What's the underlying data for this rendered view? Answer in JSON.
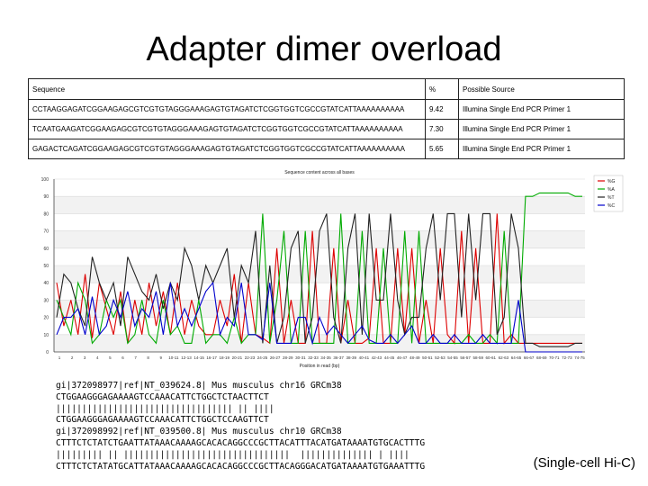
{
  "title": "Adapter dimer overload",
  "table": {
    "headers": [
      "Sequence",
      "%",
      "Possible Source"
    ],
    "rows": [
      {
        "sequence": "CCTAAGGAGATCGGAAGAGCGTCGTGTAGGGAAAGAGTGTAGATCTCGGTGGTCGCCGTATCATTAAAAAAAAAA",
        "percent": "9.42",
        "source": "Illumina Single End PCR Primer 1"
      },
      {
        "sequence": "TCAATGAAGATCGGAAGAGCGTCGTGTAGGGAAAGAGTGTAGATCTCGGTGGTCGCCGTATCATTAAAAAAAAAA",
        "percent": "7.30",
        "source": "Illumina Single End PCR Primer 1"
      },
      {
        "sequence": "GAGACTCAGATCGGAAGAGCGTCGTGTAGGGAAAGAGTGTAGATCTCGGTGGTCGCCGTATCATTAAAAAAAAAA",
        "percent": "5.65",
        "source": "Illumina Single End PCR Primer 1"
      }
    ]
  },
  "chart_data": {
    "type": "line",
    "title": "Sequence content across all bases",
    "xlabel": "Position in read (bp)",
    "ylabel": "",
    "ylim": [
      0,
      100
    ],
    "yticks": [
      "0",
      "10",
      "20",
      "30",
      "40",
      "50",
      "60",
      "70",
      "80",
      "90",
      "100"
    ],
    "categories": [
      "1",
      "2",
      "3",
      "4",
      "5",
      "6",
      "7",
      "8",
      "9",
      "10",
      "11",
      "12",
      "13",
      "14",
      "15",
      "16",
      "17",
      "18",
      "19",
      "20",
      "21",
      "22",
      "23",
      "24",
      "25",
      "26",
      "27",
      "28",
      "29",
      "30",
      "31",
      "32",
      "33",
      "34",
      "35",
      "36",
      "37",
      "38",
      "39",
      "40",
      "41",
      "42",
      "43",
      "44",
      "45",
      "46",
      "47",
      "48",
      "49",
      "50",
      "51",
      "52",
      "53",
      "54",
      "55",
      "56",
      "57",
      "58",
      "59",
      "60",
      "61",
      "62",
      "63",
      "64",
      "65",
      "66",
      "67",
      "68",
      "69",
      "70",
      "71",
      "72",
      "73",
      "74",
      "75"
    ],
    "xtick_labels": [
      "1",
      "2",
      "3",
      "4",
      "5",
      "6",
      "7",
      "8",
      "9",
      "10-11",
      "12-13",
      "14-15",
      "16-17",
      "18-19",
      "20-21",
      "22-23",
      "24-25",
      "26-27",
      "28-29",
      "30-31",
      "32-33",
      "34-35",
      "36-37",
      "38-39",
      "40-41",
      "42-43",
      "44-45",
      "46-47",
      "48-49",
      "50-51",
      "52-53",
      "54-55",
      "56-57",
      "58-59",
      "60-61",
      "62-63",
      "64-65",
      "66-67",
      "68-69",
      "70-71",
      "72-73",
      "74-75"
    ],
    "legend": {
      "placement": "right",
      "entries": [
        "%G",
        "%A",
        "%T",
        "%C"
      ]
    },
    "grid": true,
    "colors": {
      "G": "#dd0000",
      "A": "#00aa00",
      "T": "#222222",
      "C": "#0000cc"
    },
    "series": [
      {
        "name": "%G",
        "values": [
          40,
          15,
          30,
          10,
          45,
          8,
          40,
          25,
          10,
          35,
          5,
          30,
          10,
          40,
          15,
          35,
          10,
          40,
          10,
          30,
          15,
          10,
          10,
          30,
          15,
          45,
          5,
          40,
          10,
          8,
          5,
          60,
          5,
          30,
          5,
          5,
          70,
          5,
          5,
          60,
          5,
          30,
          5,
          5,
          8,
          60,
          5,
          5,
          60,
          10,
          60,
          5,
          30,
          5,
          60,
          10,
          5,
          70,
          5,
          60,
          5,
          5,
          80,
          5,
          10,
          5,
          5,
          5,
          5,
          5,
          5,
          5,
          5,
          5,
          5
        ]
      },
      {
        "name": "%A",
        "values": [
          30,
          20,
          10,
          40,
          30,
          5,
          10,
          30,
          20,
          30,
          5,
          10,
          30,
          10,
          5,
          30,
          10,
          15,
          5,
          5,
          30,
          5,
          10,
          10,
          5,
          20,
          5,
          10,
          10,
          80,
          5,
          30,
          70,
          5,
          5,
          70,
          5,
          5,
          5,
          5,
          80,
          5,
          5,
          70,
          5,
          5,
          60,
          5,
          5,
          70,
          5,
          70,
          5,
          5,
          5,
          5,
          5,
          5,
          10,
          5,
          5,
          10,
          5,
          70,
          5,
          5,
          90,
          90,
          92,
          92,
          92,
          92,
          92,
          90,
          90
        ]
      },
      {
        "name": "%T",
        "values": [
          20,
          45,
          40,
          25,
          15,
          55,
          40,
          30,
          40,
          15,
          55,
          45,
          35,
          30,
          45,
          25,
          40,
          30,
          60,
          50,
          30,
          50,
          40,
          50,
          60,
          20,
          50,
          40,
          70,
          5,
          50,
          5,
          20,
          60,
          70,
          5,
          20,
          70,
          80,
          20,
          5,
          60,
          80,
          10,
          80,
          30,
          30,
          80,
          30,
          10,
          20,
          20,
          60,
          80,
          30,
          80,
          80,
          20,
          80,
          30,
          80,
          80,
          10,
          20,
          80,
          60,
          5,
          5,
          3,
          3,
          3,
          3,
          3,
          5,
          5
        ]
      },
      {
        "name": "%C",
        "values": [
          10,
          20,
          20,
          25,
          10,
          32,
          10,
          15,
          30,
          20,
          35,
          15,
          25,
          20,
          35,
          10,
          40,
          15,
          25,
          15,
          25,
          35,
          40,
          10,
          20,
          15,
          40,
          10,
          10,
          7,
          40,
          5,
          5,
          5,
          20,
          20,
          5,
          20,
          10,
          15,
          10,
          5,
          10,
          15,
          7,
          5,
          5,
          10,
          5,
          10,
          15,
          5,
          5,
          10,
          5,
          5,
          10,
          5,
          5,
          5,
          10,
          5,
          5,
          5,
          5,
          30,
          0,
          0,
          0,
          0,
          0,
          0,
          0,
          0,
          0
        ]
      }
    ]
  },
  "alignment": {
    "lines": [
      "gi|372098977|ref|NT_039624.8| Mus musculus chr16 GRCm38",
      "CTGGAAGGGAGAAAAGTCCAAACATTCTGGCTCTAACTTCT",
      "|||||||||||||||||||||||||||||||||| || ||||",
      "CTGGAAGGGAGAAAAGTCCAAACATTCTGGCTCCAAGTTCT",
      "gi|372098992|ref|NT_039500.8| Mus musculus chr10 GRCm38",
      "CTTTCTCTATCTGAATTATAAACAAAAGCACACAGGCCCGCTTACATTTACATGATAAAATGTGCACTTTG",
      "||||||||| || ||||||||||||||||||||||||||||||||  |||||||||||||| | ||||",
      "CTTTCTCTATATGCATTATAAACAAAAGCACACAGGCCCGCTTACAGGGACATGATAAAATGTGAAATTTG"
    ]
  },
  "caption": "(Single-cell Hi-C)"
}
